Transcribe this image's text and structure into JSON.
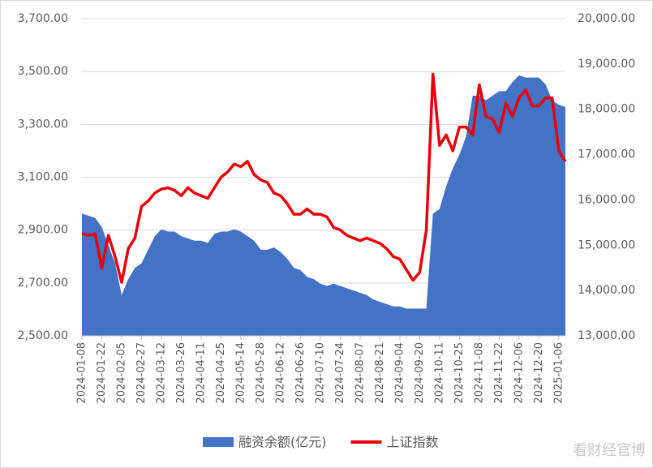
{
  "chart_data": {
    "type": "area-line",
    "categories": [
      "2024-01-08",
      null,
      null,
      "2024-01-22",
      null,
      null,
      "2024-02-05",
      null,
      null,
      "2024-02-27",
      null,
      null,
      "2024-03-12",
      null,
      null,
      "2024-03-26",
      null,
      null,
      "2024-04-11",
      null,
      null,
      "2024-04-25",
      null,
      null,
      "2024-05-14",
      null,
      null,
      "2024-05-28",
      null,
      null,
      "2024-06-12",
      null,
      null,
      "2024-06-26",
      null,
      null,
      "2024-07-10",
      null,
      null,
      "2024-07-24",
      null,
      null,
      "2024-08-07",
      null,
      null,
      "2024-08-21",
      null,
      null,
      "2024-09-04",
      null,
      null,
      "2024-09-20",
      null,
      null,
      "2024-10-11",
      null,
      null,
      "2024-10-25",
      null,
      null,
      "2024-11-08",
      null,
      null,
      "2024-11-22",
      null,
      null,
      "2024-12-06",
      null,
      null,
      "2024-12-20",
      null,
      null,
      "2025-01-06",
      null
    ],
    "series": [
      {
        "name": "融资余额(亿元)",
        "color": "#4472c4",
        "kind": "area",
        "axis": "y2",
        "values": [
          15700,
          15650,
          15600,
          15400,
          15000,
          14600,
          13900,
          14250,
          14500,
          14600,
          14900,
          15200,
          15350,
          15300,
          15300,
          15200,
          15150,
          15100,
          15100,
          15050,
          15250,
          15300,
          15300,
          15350,
          15300,
          15200,
          15100,
          14900,
          14900,
          14950,
          14850,
          14700,
          14500,
          14450,
          14300,
          14250,
          14150,
          14100,
          14150,
          14100,
          14050,
          14000,
          13950,
          13900,
          13800,
          13750,
          13700,
          13650,
          13650,
          13600,
          13600,
          13600,
          13600,
          15700,
          15800,
          16300,
          16700,
          17000,
          17400,
          18300,
          18300,
          18200,
          18300,
          18400,
          18400,
          18600,
          18750,
          18700,
          18700,
          18700,
          18550,
          18200,
          18100,
          18050
        ]
      },
      {
        "name": "上证指数",
        "color": "#e8000b",
        "kind": "line",
        "values": [
          2887,
          2880,
          2885,
          2756,
          2880,
          2800,
          2702,
          2830,
          2870,
          2990,
          3010,
          3040,
          3055,
          3060,
          3050,
          3030,
          3060,
          3040,
          3030,
          3020,
          3060,
          3100,
          3120,
          3150,
          3140,
          3160,
          3110,
          3090,
          3080,
          3040,
          3030,
          3000,
          2960,
          2960,
          2980,
          2960,
          2960,
          2950,
          2910,
          2900,
          2880,
          2870,
          2860,
          2870,
          2860,
          2850,
          2830,
          2800,
          2790,
          2750,
          2710,
          2740,
          2900,
          3490,
          3220,
          3260,
          3200,
          3290,
          3290,
          3260,
          3450,
          3330,
          3320,
          3270,
          3380,
          3330,
          3400,
          3430,
          3370,
          3370,
          3400,
          3400,
          3200,
          3160
        ]
      }
    ],
    "ylim": [
      2500,
      3700
    ],
    "yticks": [
      {
        "value": 2500,
        "label": "2,500.00"
      },
      {
        "value": 2700,
        "label": "2,700.00"
      },
      {
        "value": 2900,
        "label": "2,900.00"
      },
      {
        "value": 3100,
        "label": "3,100.00"
      },
      {
        "value": 3300,
        "label": "3,300.00"
      },
      {
        "value": 3500,
        "label": "3,500.00"
      },
      {
        "value": 3700,
        "label": "3,700.00"
      }
    ],
    "y2lim": [
      13000,
      20000
    ],
    "y2ticks": [
      {
        "value": 13000,
        "label": "13,000.00"
      },
      {
        "value": 14000,
        "label": "14,000.00"
      },
      {
        "value": 15000,
        "label": "15,000.00"
      },
      {
        "value": 16000,
        "label": "16,000.00"
      },
      {
        "value": 17000,
        "label": "17,000.00"
      },
      {
        "value": 18000,
        "label": "18,000.00"
      },
      {
        "value": 19000,
        "label": "19,000.00"
      },
      {
        "value": 20000,
        "label": "20,000.00"
      }
    ],
    "grid": true,
    "legend": "bottom",
    "watermark": "看财经官博"
  }
}
